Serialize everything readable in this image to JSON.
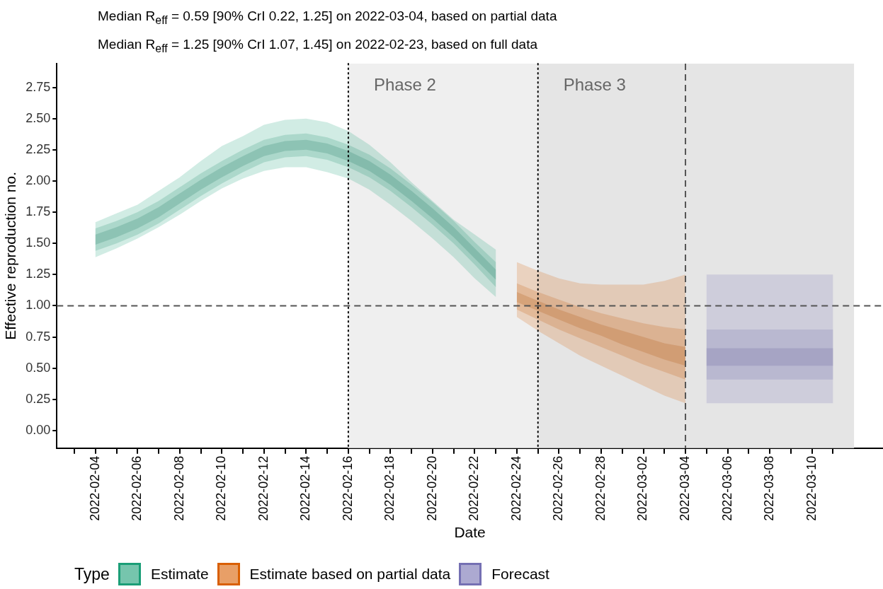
{
  "chart_data": {
    "type": "line",
    "title": "Median R$_{eff}$ = 0.59 [90% CrI 0.22, 1.25] on 2022-03-04, based on partial data",
    "subtitle": "Median R$_{eff}$ = 1.25 [90% CrI 1.07, 1.45] on 2022-02-23, based on full data",
    "xlabel": "Date",
    "ylabel": "Effective reproduction no.",
    "legend_title": "Type",
    "legend": "bottom left",
    "xlim": [
      "2022-02-02T04:00",
      "2022-03-13T09:00"
    ],
    "xticks": [
      {
        "value": "2022-02-03",
        "label": null
      },
      "2022-02-04",
      {
        "value": "2022-02-05",
        "label": null
      },
      "2022-02-06",
      {
        "value": "2022-02-07",
        "label": null
      },
      "2022-02-08",
      {
        "value": "2022-02-09",
        "label": null
      },
      "2022-02-10",
      {
        "value": "2022-02-11",
        "label": null
      },
      "2022-02-12",
      {
        "value": "2022-02-13",
        "label": null
      },
      "2022-02-14",
      {
        "value": "2022-02-15",
        "label": null
      },
      "2022-02-16",
      {
        "value": "2022-02-17",
        "label": null
      },
      "2022-02-18",
      {
        "value": "2022-02-19",
        "label": null
      },
      "2022-02-20",
      {
        "value": "2022-02-21",
        "label": null
      },
      "2022-02-22",
      {
        "value": "2022-02-23",
        "label": null
      },
      "2022-02-24",
      {
        "value": "2022-02-25",
        "label": null
      },
      "2022-02-26",
      {
        "value": "2022-02-27",
        "label": null
      },
      "2022-02-28",
      {
        "value": "2022-03-01",
        "label": null
      },
      "2022-03-02",
      {
        "value": "2022-03-03",
        "label": null
      },
      "2022-03-04",
      {
        "value": "2022-03-05",
        "label": null
      },
      "2022-03-06",
      {
        "value": "2022-03-07",
        "label": null
      },
      "2022-03-08",
      {
        "value": "2022-03-09",
        "label": null
      },
      "2022-03-10",
      {
        "value": "2022-03-11",
        "label": null
      }
    ],
    "ylim": [
      -0.14,
      2.94
    ],
    "yticks": [
      {
        "value": 0,
        "label": "0.00"
      },
      {
        "value": 0.25,
        "label": "0.25"
      },
      {
        "value": 0.5,
        "label": "0.50"
      },
      {
        "value": 0.75,
        "label": "0.75"
      },
      {
        "value": 1,
        "label": "1.00"
      },
      {
        "value": 1.25,
        "label": "1.25"
      },
      {
        "value": 1.5,
        "label": "1.50"
      },
      {
        "value": 1.75,
        "label": "1.75"
      },
      {
        "value": 2,
        "label": "2.00"
      },
      {
        "value": 2.25,
        "label": "2.25"
      },
      {
        "value": 2.5,
        "label": "2.50"
      },
      {
        "value": 2.75,
        "label": "2.75"
      }
    ],
    "bands": [
      {
        "axis": "x",
        "from": "2022-02-16",
        "to": "2022-02-25",
        "label": "Phase 2",
        "color": "#efefef"
      },
      {
        "axis": "x",
        "from": "2022-02-25",
        "to": "2022-03-12",
        "label": "Phase 3",
        "color": "#e5e5e5"
      }
    ],
    "ref_lines": [
      {
        "axis": "x",
        "value": "2022-02-16",
        "line_style": "dotted",
        "color": "#000000"
      },
      {
        "axis": "x",
        "value": "2022-02-25",
        "line_style": "dotted",
        "color": "#000000"
      },
      {
        "axis": "x",
        "value": "2022-03-04",
        "line_style": "dashed",
        "color": "#555555"
      },
      {
        "axis": "y",
        "value": 1,
        "line_style": "dashed",
        "color": "#555555"
      }
    ],
    "series": [
      {
        "name": "Estimate",
        "color": "#1b9e77",
        "x": [
          "2022-02-04",
          "2022-02-05",
          "2022-02-06",
          "2022-02-07",
          "2022-02-08",
          "2022-02-09",
          "2022-02-10",
          "2022-02-11",
          "2022-02-12",
          "2022-02-13",
          "2022-02-14",
          "2022-02-15",
          "2022-02-16",
          "2022-02-17",
          "2022-02-18",
          "2022-02-19",
          "2022-02-20",
          "2022-02-21",
          "2022-02-22",
          "2022-02-23"
        ],
        "values": [
          null,
          null,
          null,
          null,
          null,
          null,
          null,
          null,
          null,
          null,
          null,
          null,
          null,
          null,
          null,
          null,
          null,
          null,
          null,
          null
        ],
        "lower": [
          1.39,
          1.46,
          1.54,
          1.63,
          1.73,
          1.84,
          1.94,
          2.02,
          2.08,
          2.11,
          2.11,
          2.07,
          2.02,
          1.93,
          1.81,
          1.68,
          1.54,
          1.39,
          1.22,
          1.07
        ],
        "upper": [
          1.67,
          1.74,
          1.81,
          1.92,
          2.03,
          2.16,
          2.28,
          2.36,
          2.45,
          2.49,
          2.5,
          2.47,
          2.4,
          2.29,
          2.15,
          1.99,
          1.84,
          1.69,
          1.57,
          1.45
        ]
      },
      {
        "color": "#178a68",
        "x": [
          "2022-02-04",
          "2022-02-05",
          "2022-02-06",
          "2022-02-07",
          "2022-02-08",
          "2022-02-09",
          "2022-02-10",
          "2022-02-11",
          "2022-02-12",
          "2022-02-13",
          "2022-02-14",
          "2022-02-15",
          "2022-02-16",
          "2022-02-17",
          "2022-02-18",
          "2022-02-19",
          "2022-02-20",
          "2022-02-21",
          "2022-02-22",
          "2022-02-23"
        ],
        "values": [
          null,
          null,
          null,
          null,
          null,
          null,
          null,
          null,
          null,
          null,
          null,
          null,
          null,
          null,
          null,
          null,
          null,
          null,
          null,
          null
        ],
        "lower": [
          1.44,
          1.5,
          1.57,
          1.66,
          1.77,
          1.88,
          1.98,
          2.07,
          2.15,
          2.19,
          2.2,
          2.17,
          2.11,
          2.03,
          1.92,
          1.79,
          1.65,
          1.5,
          1.33,
          1.15
        ],
        "upper": [
          1.62,
          1.68,
          1.75,
          1.84,
          1.95,
          2.06,
          2.16,
          2.25,
          2.33,
          2.37,
          2.38,
          2.35,
          2.29,
          2.21,
          2.1,
          1.97,
          1.83,
          1.68,
          1.51,
          1.35
        ]
      },
      {
        "color": "#127458",
        "x": [
          "2022-02-04",
          "2022-02-05",
          "2022-02-06",
          "2022-02-07",
          "2022-02-08",
          "2022-02-09",
          "2022-02-10",
          "2022-02-11",
          "2022-02-12",
          "2022-02-13",
          "2022-02-14",
          "2022-02-15",
          "2022-02-16",
          "2022-02-17",
          "2022-02-18",
          "2022-02-19",
          "2022-02-20",
          "2022-02-21",
          "2022-02-22",
          "2022-02-23"
        ],
        "values": [
          null,
          null,
          null,
          null,
          null,
          null,
          null,
          null,
          null,
          null,
          null,
          null,
          null,
          null,
          null,
          null,
          null,
          null,
          null,
          null
        ],
        "lower": [
          1.49,
          1.55,
          1.62,
          1.71,
          1.82,
          1.93,
          2.03,
          2.12,
          2.2,
          2.24,
          2.25,
          2.22,
          2.16,
          2.08,
          1.97,
          1.84,
          1.7,
          1.55,
          1.38,
          1.21
        ],
        "upper": [
          1.57,
          1.63,
          1.7,
          1.79,
          1.9,
          2.01,
          2.11,
          2.2,
          2.28,
          2.32,
          2.33,
          2.3,
          2.24,
          2.16,
          2.05,
          1.92,
          1.78,
          1.63,
          1.46,
          1.29
        ]
      },
      {
        "name": "Estimate based on partial data",
        "color": "#d95f02",
        "x": [
          "2022-02-24",
          "2022-02-25",
          "2022-02-26",
          "2022-02-27",
          "2022-02-28",
          "2022-03-01",
          "2022-03-02",
          "2022-03-03",
          "2022-03-04"
        ],
        "values": [
          null,
          null,
          null,
          null,
          null,
          null,
          null,
          null,
          null
        ],
        "lower": [
          0.91,
          0.8,
          0.7,
          0.6,
          0.52,
          0.44,
          0.36,
          0.28,
          0.22
        ],
        "upper": [
          1.35,
          1.28,
          1.22,
          1.18,
          1.17,
          1.17,
          1.17,
          1.2,
          1.25
        ]
      },
      {
        "color": "#c25502",
        "x": [
          "2022-02-24",
          "2022-02-25",
          "2022-02-26",
          "2022-02-27",
          "2022-02-28",
          "2022-03-01",
          "2022-03-02",
          "2022-03-03",
          "2022-03-04"
        ],
        "values": [
          null,
          null,
          null,
          null,
          null,
          null,
          null,
          null,
          null
        ],
        "lower": [
          0.97,
          0.89,
          0.81,
          0.74,
          0.67,
          0.6,
          0.53,
          0.47,
          0.41
        ],
        "upper": [
          1.18,
          1.11,
          1.05,
          0.99,
          0.94,
          0.9,
          0.86,
          0.83,
          0.81
        ]
      },
      {
        "color": "#a84a02",
        "x": [
          "2022-02-24",
          "2022-02-25",
          "2022-02-26",
          "2022-02-27",
          "2022-02-28",
          "2022-03-01",
          "2022-03-02",
          "2022-03-03",
          "2022-03-04"
        ],
        "values": [
          null,
          null,
          null,
          null,
          null,
          null,
          null,
          null,
          null
        ],
        "lower": [
          1.03,
          0.96,
          0.89,
          0.82,
          0.76,
          0.69,
          0.63,
          0.57,
          0.52
        ],
        "upper": [
          1.11,
          1.04,
          0.97,
          0.91,
          0.85,
          0.8,
          0.75,
          0.7,
          0.67
        ]
      },
      {
        "name": "Forecast",
        "color": "#7570b3",
        "x": [
          "2022-03-05",
          "2022-03-06",
          "2022-03-07",
          "2022-03-08",
          "2022-03-09",
          "2022-03-10",
          "2022-03-11"
        ],
        "values": [
          null,
          null,
          null,
          null,
          null,
          null,
          null
        ],
        "lower": [
          0.22,
          0.22,
          0.22,
          0.22,
          0.22,
          0.22,
          0.22
        ],
        "upper": [
          1.25,
          1.25,
          1.25,
          1.25,
          1.25,
          1.25,
          1.25
        ]
      },
      {
        "color": "#6862a6",
        "x": [
          "2022-03-05",
          "2022-03-06",
          "2022-03-07",
          "2022-03-08",
          "2022-03-09",
          "2022-03-10",
          "2022-03-11"
        ],
        "values": [
          null,
          null,
          null,
          null,
          null,
          null,
          null
        ],
        "lower": [
          0.41,
          0.41,
          0.41,
          0.41,
          0.41,
          0.41,
          0.41
        ],
        "upper": [
          0.81,
          0.81,
          0.81,
          0.81,
          0.81,
          0.81,
          0.81
        ]
      },
      {
        "color": "#5a5496",
        "x": [
          "2022-03-05",
          "2022-03-06",
          "2022-03-07",
          "2022-03-08",
          "2022-03-09",
          "2022-03-10",
          "2022-03-11"
        ],
        "values": [
          null,
          null,
          null,
          null,
          null,
          null,
          null
        ],
        "lower": [
          0.52,
          0.52,
          0.52,
          0.52,
          0.52,
          0.52,
          0.52
        ],
        "upper": [
          0.66,
          0.66,
          0.66,
          0.66,
          0.66,
          0.66,
          0.66
        ]
      }
    ]
  }
}
